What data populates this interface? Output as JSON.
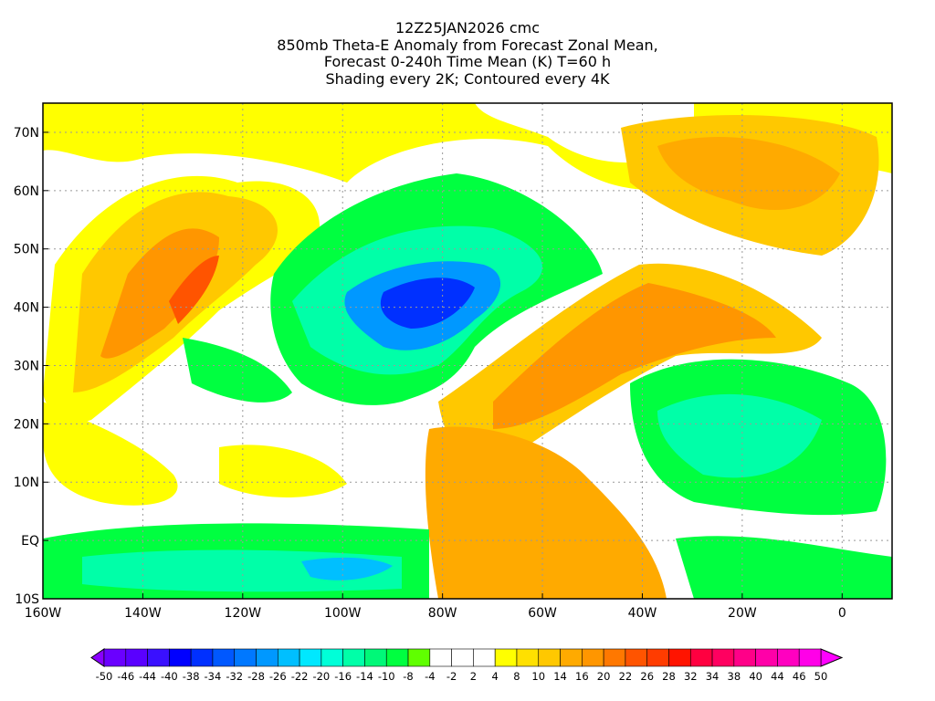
{
  "title": {
    "line1": "12Z25JAN2026 cmc",
    "line2": "850mb Theta-E Anomaly from Forecast Zonal Mean,",
    "line3": "Forecast 0-240h Time Mean (K) T=60 h",
    "line4": "Shading every 2K; Contoured every 4K"
  },
  "axes": {
    "lat_labels": [
      "70N",
      "60N",
      "50N",
      "40N",
      "30N",
      "20N",
      "10N",
      "EQ",
      "10S"
    ],
    "lat_values": [
      70,
      60,
      50,
      40,
      30,
      20,
      10,
      0,
      -10
    ],
    "lon_labels": [
      "160W",
      "140W",
      "120W",
      "100W",
      "80W",
      "60W",
      "40W",
      "20W",
      "0"
    ],
    "lon_values": [
      -160,
      -140,
      -120,
      -100,
      -80,
      -60,
      -40,
      -20,
      0
    ],
    "lon_range": [
      -160,
      10
    ],
    "lat_range": [
      -10,
      75
    ]
  },
  "colorbar": {
    "labels": [
      "-50",
      "-46",
      "-44",
      "-40",
      "-38",
      "-34",
      "-32",
      "-28",
      "-26",
      "-22",
      "-20",
      "-16",
      "-14",
      "-10",
      "-8",
      "-4",
      "-2",
      "2",
      "4",
      "8",
      "10",
      "14",
      "16",
      "20",
      "22",
      "26",
      "28",
      "32",
      "34",
      "38",
      "40",
      "44",
      "46",
      "50"
    ],
    "colors": [
      "#6a00ff",
      "#5a00ff",
      "#3a10ff",
      "#0000ff",
      "#0030ff",
      "#0058ff",
      "#0078ff",
      "#0098ff",
      "#00bfff",
      "#00e8ff",
      "#00ffd8",
      "#00ffa8",
      "#00f878",
      "#00ff40",
      "#60ff00",
      "#ffffff",
      "#ffffff",
      "#ffffff",
      "#ffff00",
      "#ffe000",
      "#ffc800",
      "#ffaa00",
      "#ff9600",
      "#ff7800",
      "#ff5400",
      "#ff3c00",
      "#ff1400",
      "#ff0040",
      "#ff0060",
      "#ff0088",
      "#ff00a8",
      "#ff00c0",
      "#ff00e8"
    ],
    "low_arrow_color": "#8a00ff",
    "high_arrow_color": "#ff00ff"
  }
}
